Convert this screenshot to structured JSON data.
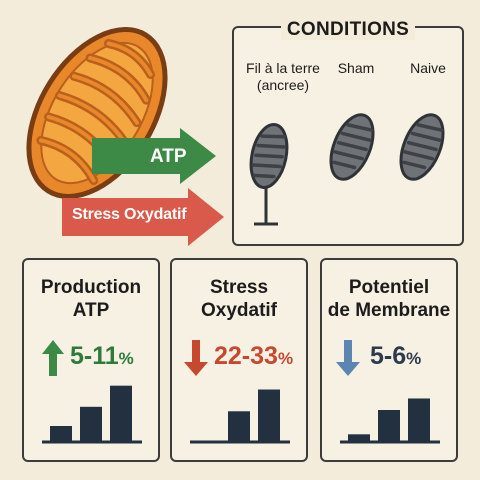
{
  "diagram": {
    "arrows": {
      "atp_label": "ATP",
      "stress_label": "Stress Oxydatif"
    },
    "conditions": {
      "title": "CONDITIONS",
      "items": [
        {
          "label": "Fil à la terre (ancree)"
        },
        {
          "label": "Sham"
        },
        {
          "label": "Naive"
        }
      ]
    },
    "metrics": [
      {
        "title_line1": "Production",
        "title_line2": "ATP",
        "direction": "up",
        "value_main": "5-11",
        "value_unit": "%",
        "bars": [
          0.25,
          0.55,
          0.88
        ]
      },
      {
        "title_line1": "Stress",
        "title_line2": "Oxydatif",
        "direction": "down",
        "value_main": "22-33",
        "value_unit": "%",
        "bars": [
          0.0,
          0.48,
          0.82
        ]
      },
      {
        "title_line1": "Potentiel",
        "title_line2": "de Membrane",
        "direction": "down",
        "value_main": "5-6",
        "value_unit": "%",
        "bars": [
          0.12,
          0.5,
          0.68
        ]
      }
    ],
    "colors": {
      "background": "#f4ecdb",
      "mito_orange": "#e9882a",
      "mito_inner": "#f4a640",
      "atp_green": "#3c8a46",
      "stress_red": "#d9594a",
      "bar_navy": "#22303f",
      "membrane_blue": "#5b86b2",
      "mini_mito_grey": "#6f7378"
    }
  }
}
